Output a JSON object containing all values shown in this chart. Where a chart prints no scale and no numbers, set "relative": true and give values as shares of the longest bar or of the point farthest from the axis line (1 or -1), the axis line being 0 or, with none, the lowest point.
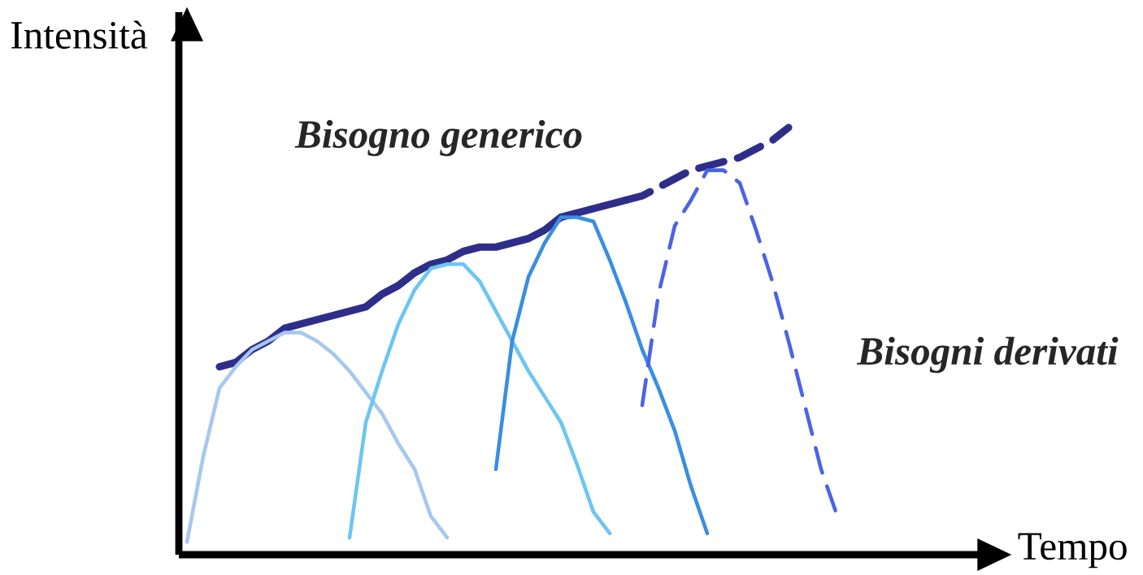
{
  "chart_data": {
    "type": "line",
    "relative": true,
    "xlabel": "Tempo",
    "ylabel": "Intensità",
    "marker": "none",
    "annotations": [
      "Bisogno generico",
      "Bisogni derivati"
    ],
    "categories": [
      null,
      null,
      null,
      null,
      null,
      null,
      null,
      null,
      null,
      null,
      null,
      null,
      null,
      null,
      null,
      null,
      null,
      null,
      null,
      null,
      null,
      null,
      null,
      null,
      null,
      null,
      null,
      null,
      null,
      null,
      null,
      null,
      null,
      null,
      null,
      null,
      null,
      null,
      null,
      null,
      null,
      null
    ],
    "series": [
      {
        "color": "#2e2e8a",
        "line_style": "solid",
        "values": [
          null,
          null,
          0.44,
          0.45,
          0.48,
          0.5,
          0.53,
          0.54,
          0.55,
          0.56,
          0.57,
          0.58,
          0.61,
          0.63,
          0.66,
          0.68,
          0.69,
          0.71,
          0.72,
          0.72,
          0.73,
          0.74,
          0.76,
          0.79,
          0.8,
          0.81,
          0.82,
          0.83,
          null,
          null,
          null,
          null,
          null,
          null,
          null,
          null,
          null,
          null,
          null,
          null,
          null,
          null
        ]
      },
      {
        "color": "#2e2e8a",
        "line_style": "dashed",
        "values": [
          null,
          null,
          null,
          null,
          null,
          null,
          null,
          null,
          null,
          null,
          null,
          null,
          null,
          null,
          null,
          null,
          null,
          null,
          null,
          null,
          null,
          null,
          null,
          null,
          null,
          null,
          null,
          0.83,
          0.84,
          0.86,
          0.88,
          0.9,
          0.91,
          0.92,
          0.93,
          0.95,
          0.97,
          1,
          null,
          null,
          null,
          null
        ]
      },
      {
        "color": "#a6c8ee",
        "line_style": "solid",
        "values": [
          0.03,
          0.23,
          0.39,
          0.44,
          0.48,
          0.5,
          0.52,
          0.52,
          0.5,
          0.47,
          0.43,
          0.38,
          0.33,
          0.26,
          0.2,
          0.09,
          0.04,
          null,
          null,
          null,
          null,
          null,
          null,
          null,
          null,
          null,
          null,
          null,
          null,
          null,
          null,
          null,
          null,
          null,
          null,
          null,
          null,
          null,
          null,
          null,
          null,
          null
        ]
      },
      {
        "color": "#6cc6f0",
        "line_style": "solid",
        "values": [
          null,
          null,
          null,
          null,
          null,
          null,
          null,
          null,
          null,
          null,
          0.04,
          0.31,
          0.43,
          0.54,
          0.62,
          0.67,
          0.68,
          0.68,
          0.64,
          0.57,
          0.5,
          0.43,
          0.37,
          0.31,
          0.21,
          0.1,
          0.05,
          null,
          null,
          null,
          null,
          null,
          null,
          null,
          null,
          null,
          null,
          null,
          null,
          null,
          null,
          null
        ]
      },
      {
        "color": "#3a8ee0",
        "line_style": "solid",
        "values": [
          null,
          null,
          null,
          null,
          null,
          null,
          null,
          null,
          null,
          null,
          null,
          null,
          null,
          null,
          null,
          null,
          null,
          null,
          null,
          0.2,
          0.5,
          0.65,
          0.73,
          0.79,
          0.79,
          0.78,
          0.69,
          0.59,
          0.48,
          0.39,
          0.29,
          0.16,
          0.05,
          null,
          null,
          null,
          null,
          null,
          null,
          null,
          null,
          null
        ]
      },
      {
        "color": "#4b63e6",
        "line_style": "dashed",
        "values": [
          null,
          null,
          null,
          null,
          null,
          null,
          null,
          null,
          null,
          null,
          null,
          null,
          null,
          null,
          null,
          null,
          null,
          null,
          null,
          null,
          null,
          null,
          null,
          null,
          null,
          null,
          null,
          null,
          0.35,
          0.61,
          0.77,
          0.83,
          0.9,
          0.9,
          0.87,
          0.76,
          0.64,
          0.5,
          0.35,
          0.2,
          0.09,
          null
        ]
      }
    ]
  }
}
